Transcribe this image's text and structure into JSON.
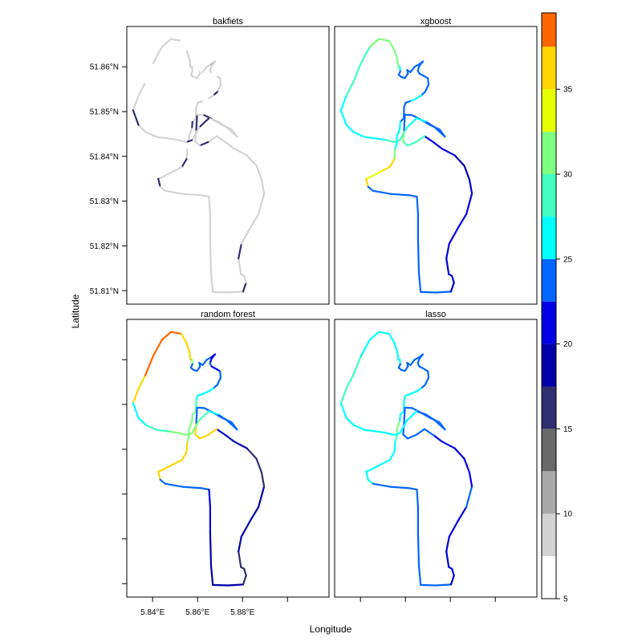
{
  "chart_data": {
    "type": "map",
    "xlabel": "Longitude",
    "ylabel": "Latitude",
    "panels": [
      {
        "name": "bakfiets"
      },
      {
        "name": "xgboost"
      },
      {
        "name": "random forest"
      },
      {
        "name": "lasso"
      }
    ],
    "xlim": [
      5.8285,
      5.9185
    ],
    "ylim": [
      51.807,
      51.869
    ],
    "x_ticks": [
      {
        "value": 5.84,
        "label": "5.84°E"
      },
      {
        "value": 5.86,
        "label": "5.86°E"
      },
      {
        "value": 5.88,
        "label": "5.88°E"
      },
      {
        "value": 5.9,
        "label": ""
      }
    ],
    "y_ticks": [
      {
        "value": 51.81,
        "label": "51.81°N"
      },
      {
        "value": 51.82,
        "label": "51.82°N"
      },
      {
        "value": 51.83,
        "label": "51.83°N"
      },
      {
        "value": 51.84,
        "label": "51.84°N"
      },
      {
        "value": 51.85,
        "label": "51.85°N"
      },
      {
        "value": 51.86,
        "label": "51.86°N"
      }
    ],
    "route": [
      [
        5.8313,
        51.8503
      ],
      [
        5.8338,
        51.8536
      ],
      [
        5.8367,
        51.8565
      ],
      [
        5.8402,
        51.8608
      ],
      [
        5.8442,
        51.8645
      ],
      [
        5.8482,
        51.8662
      ],
      [
        5.8528,
        51.8658
      ],
      [
        5.8553,
        51.8635
      ],
      [
        5.8565,
        51.8615
      ],
      [
        5.8568,
        51.86
      ],
      [
        5.8575,
        51.86
      ],
      [
        5.8577,
        51.859
      ],
      [
        5.857,
        51.8582
      ],
      [
        5.8583,
        51.8577
      ],
      [
        5.8598,
        51.8575
      ],
      [
        5.8611,
        51.8585
      ],
      [
        5.8608,
        51.8593
      ],
      [
        5.8622,
        51.8588
      ],
      [
        5.8641,
        51.86
      ],
      [
        5.866,
        51.8605
      ],
      [
        5.8678,
        51.8612
      ],
      [
        5.8662,
        51.8602
      ],
      [
        5.8655,
        51.8592
      ],
      [
        5.8662,
        51.8585
      ],
      [
        5.8688,
        51.8578
      ],
      [
        5.87,
        51.8574
      ],
      [
        5.8703,
        51.856
      ],
      [
        5.8688,
        51.8544
      ],
      [
        5.867,
        51.8536
      ],
      [
        5.8645,
        51.8528
      ],
      [
        5.862,
        51.8523
      ],
      [
        5.8601,
        51.852
      ],
      [
        5.8594,
        51.851
      ],
      [
        5.8593,
        51.8485
      ],
      [
        5.8577,
        51.8477
      ],
      [
        5.8575,
        51.8462
      ],
      [
        5.8562,
        51.8445
      ],
      [
        5.8562,
        51.843
      ],
      [
        5.8554,
        51.8416
      ],
      [
        5.8551,
        51.8394
      ],
      [
        5.853,
        51.8376
      ],
      [
        5.849,
        51.8366
      ],
      [
        5.8445,
        51.8354
      ],
      [
        5.8425,
        51.835
      ],
      [
        5.8434,
        51.8332
      ],
      [
        5.8456,
        51.8323
      ],
      [
        5.8535,
        51.8316
      ],
      [
        5.862,
        51.8313
      ],
      [
        5.8651,
        51.831
      ],
      [
        5.8656,
        51.8272
      ],
      [
        5.8656,
        51.8215
      ],
      [
        5.866,
        51.814
      ],
      [
        5.8668,
        51.8097
      ],
      [
        5.8735,
        51.8096
      ],
      [
        5.8803,
        51.8098
      ],
      [
        5.8816,
        51.8118
      ],
      [
        5.8807,
        51.8133
      ],
      [
        5.8793,
        51.8137
      ],
      [
        5.8782,
        51.8172
      ],
      [
        5.8795,
        51.8205
      ],
      [
        5.8835,
        51.8241
      ],
      [
        5.8871,
        51.8271
      ],
      [
        5.8896,
        51.8317
      ],
      [
        5.8885,
        51.8348
      ],
      [
        5.8862,
        51.8379
      ],
      [
        5.882,
        51.8402
      ],
      [
        5.879,
        51.841
      ],
      [
        5.876,
        51.8418
      ],
      [
        5.8726,
        51.8431
      ],
      [
        5.8685,
        51.8445
      ],
      [
        5.8647,
        51.8432
      ],
      [
        5.861,
        51.8424
      ],
      [
        5.859,
        51.8433
      ],
      [
        5.8594,
        51.8459
      ],
      [
        5.8598,
        51.8493
      ],
      [
        5.863,
        51.8492
      ],
      [
        5.8665,
        51.8483
      ],
      [
        5.871,
        51.847
      ],
      [
        5.8752,
        51.846
      ],
      [
        5.8776,
        51.8444
      ],
      [
        5.873,
        51.8465
      ],
      [
        5.869,
        51.8478
      ],
      [
        5.865,
        51.8485
      ],
      [
        5.8608,
        51.8465
      ],
      [
        5.8575,
        51.8436
      ],
      [
        5.855,
        51.8432
      ],
      [
        5.851,
        51.8437
      ],
      [
        5.847,
        51.844
      ],
      [
        5.842,
        51.8443
      ],
      [
        5.837,
        51.8454
      ],
      [
        5.8337,
        51.847
      ],
      [
        5.8313,
        51.8503
      ]
    ],
    "series": [
      {
        "name": "bakfiets",
        "segment_values": [
          9,
          8,
          7,
          8,
          9,
          8,
          7,
          8,
          9,
          8,
          9,
          8,
          9,
          8,
          9,
          8,
          7,
          8,
          9,
          10,
          8,
          9,
          8,
          7,
          9,
          8,
          9,
          16,
          8,
          7,
          9,
          8,
          9,
          8,
          16,
          9,
          8,
          7,
          9,
          16,
          9,
          8,
          9,
          17,
          8,
          9,
          8,
          9,
          8,
          9,
          8,
          9,
          8,
          9,
          16,
          9,
          8,
          9,
          16,
          9,
          8,
          9,
          8,
          9,
          8,
          9,
          8,
          9,
          8,
          9,
          16,
          9,
          8,
          16,
          9,
          17,
          8,
          9,
          8,
          9,
          8,
          9,
          16,
          9,
          16,
          8,
          9,
          8,
          9,
          8,
          16
        ]
      },
      {
        "name": "xgboost",
        "segment_values": [
          27,
          28,
          29,
          29,
          30,
          30,
          30,
          30,
          31,
          30,
          27,
          24,
          23,
          23,
          23,
          24,
          23,
          23,
          23,
          23,
          23,
          23,
          23,
          24,
          24,
          23,
          23,
          23,
          25,
          25,
          24,
          24,
          24,
          24,
          25,
          25,
          26,
          26,
          32,
          36,
          35,
          34,
          34,
          37,
          24,
          23,
          23,
          23,
          23,
          23,
          23,
          23,
          23,
          23,
          22,
          21,
          21,
          21,
          21,
          22,
          22,
          22,
          20,
          18,
          19,
          20,
          20,
          21,
          22,
          28,
          28,
          29,
          30,
          24,
          24,
          24,
          24,
          24,
          24,
          24,
          24,
          25,
          26,
          28,
          29,
          28,
          27,
          27,
          26,
          26,
          25
        ]
      },
      {
        "name": "random forest",
        "segment_values": [
          36,
          37,
          38,
          38,
          38,
          38,
          37,
          36,
          36,
          35,
          31,
          24,
          23,
          23,
          23,
          24,
          23,
          23,
          23,
          21,
          21,
          22,
          23,
          22,
          22,
          23,
          24,
          24,
          26,
          27,
          27,
          27,
          28,
          30,
          30,
          30,
          31,
          32,
          36,
          37,
          36,
          35,
          35,
          37,
          24,
          23,
          23,
          23,
          22,
          22,
          19,
          19,
          18,
          18,
          17,
          17,
          17,
          17,
          18,
          18,
          18,
          19,
          17,
          16,
          17,
          18,
          18,
          19,
          20,
          35,
          35,
          36,
          36,
          24,
          24,
          24,
          24,
          24,
          24,
          24,
          24,
          27,
          29,
          31,
          32,
          31,
          30,
          29,
          28,
          27,
          26
        ]
      },
      {
        "name": "lasso",
        "segment_values": [
          28,
          28,
          28,
          27,
          27,
          27,
          27,
          27,
          27,
          27,
          26,
          24,
          24,
          24,
          24,
          24,
          24,
          24,
          24,
          23,
          23,
          24,
          24,
          24,
          24,
          24,
          24,
          24,
          26,
          26,
          25,
          25,
          25,
          25,
          26,
          30,
          31,
          28,
          27,
          27,
          27,
          27,
          27,
          27,
          25,
          24,
          24,
          24,
          24,
          24,
          24,
          24,
          23,
          23,
          22,
          22,
          22,
          22,
          22,
          22,
          22,
          23,
          22,
          21,
          22,
          22,
          22,
          22,
          23,
          24,
          24,
          24,
          24,
          24,
          24,
          24,
          24,
          24,
          24,
          24,
          24,
          24,
          25,
          25,
          26,
          26,
          25,
          25,
          25,
          25,
          25
        ]
      }
    ],
    "colorbar": {
      "min": 5,
      "max": 39.5,
      "step": 2.5,
      "colors": [
        "#ffffff",
        "#d3d3d3",
        "#a9a9a9",
        "#696969",
        "#2f2f70",
        "#0000aa",
        "#0000e6",
        "#0066ff",
        "#00ffff",
        "#40ffc0",
        "#80ff80",
        "#e6ff00",
        "#ffd700",
        "#ff6600",
        "#ff0000",
        "#cc0000"
      ],
      "tick_values": [
        5,
        10,
        15,
        20,
        25,
        30,
        35
      ],
      "tick_labels": [
        "5",
        "10",
        "15",
        "20",
        "25",
        "30",
        "35"
      ]
    }
  }
}
